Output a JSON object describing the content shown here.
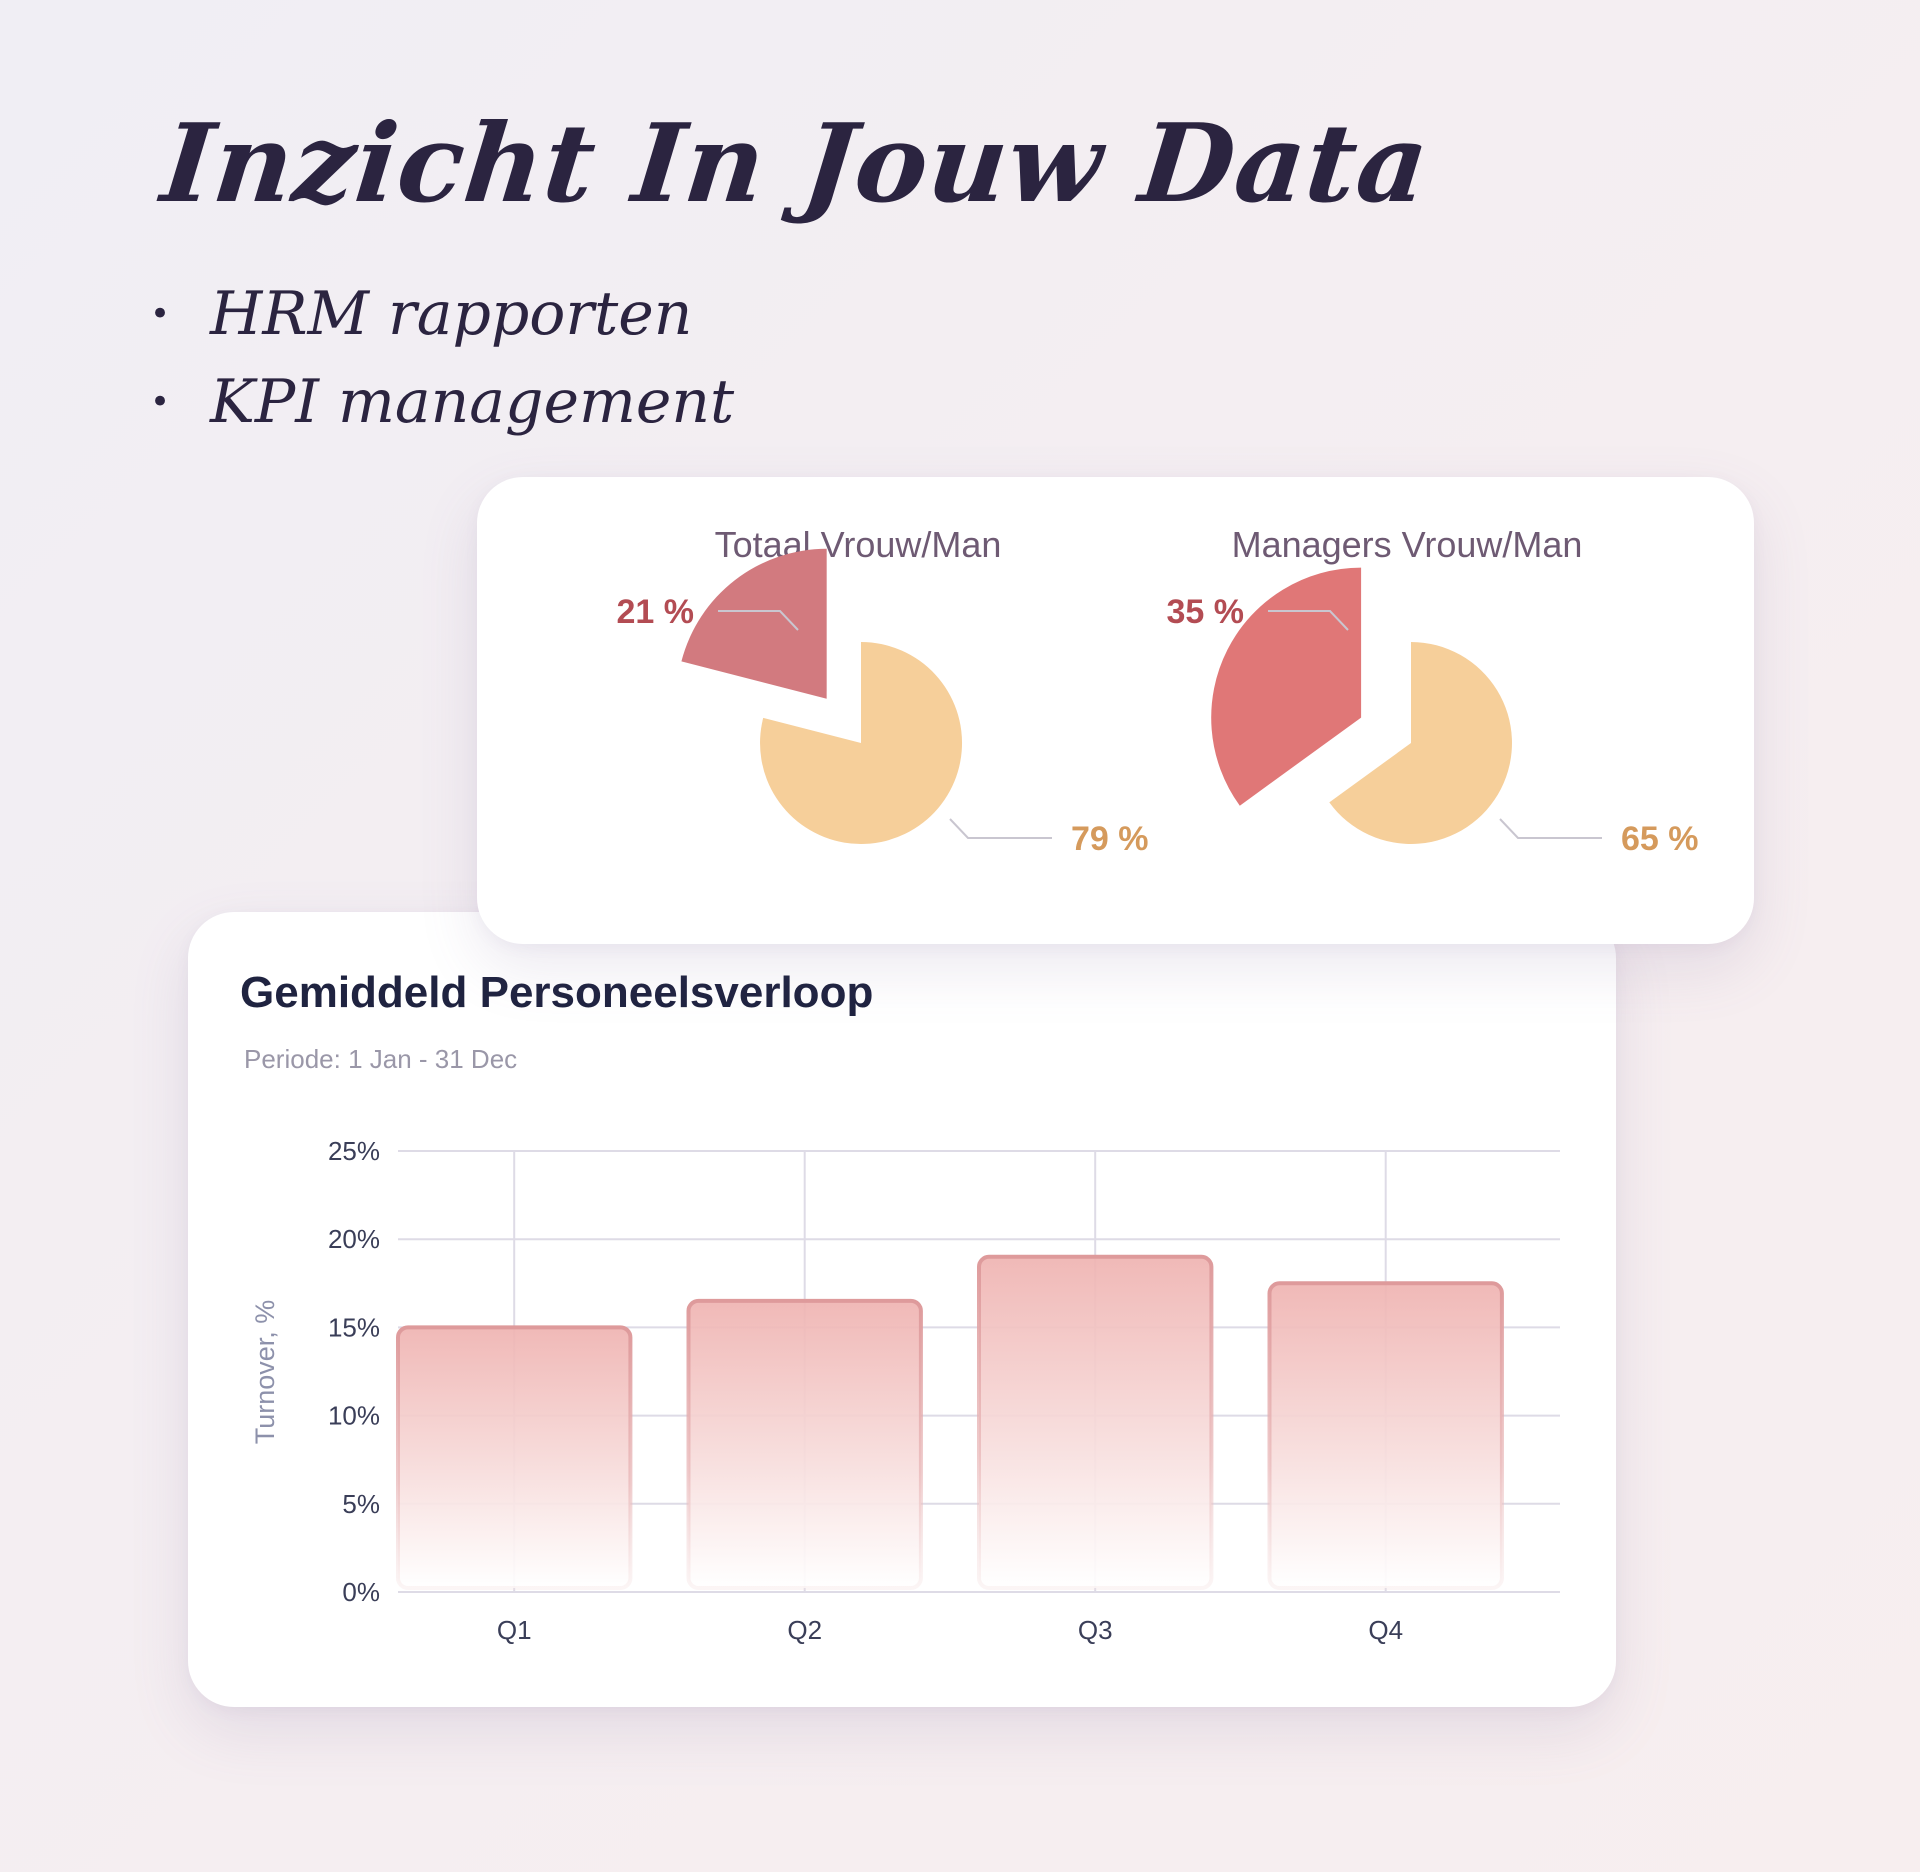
{
  "hero": {
    "title": "Inzicht In Jouw Data",
    "bullets": [
      "HRM rapporten",
      "KPI management"
    ]
  },
  "colors": {
    "female_total": "#d27a7f",
    "female_managers": "#e07777",
    "male": "#f6cf9a",
    "female_label": "#b34c53",
    "male_label": "#d59a5c",
    "bar_top": "#efb3b1",
    "bar_border": "#de9a9b",
    "grid": "#dedbe6"
  },
  "chart_data": [
    {
      "type": "pie",
      "title": "Totaal Vrouw/Man",
      "slices": [
        {
          "label": "21 %",
          "value": 21,
          "exploded": true
        },
        {
          "label": "79 %",
          "value": 79
        }
      ]
    },
    {
      "type": "pie",
      "title": "Managers Vrouw/Man",
      "slices": [
        {
          "label": "35 %",
          "value": 35,
          "exploded": true
        },
        {
          "label": "65 %",
          "value": 65
        }
      ]
    },
    {
      "type": "bar",
      "title": "Gemiddeld Personeelsverloop",
      "subtitle": "Periode: 1 Jan - 31 Dec",
      "categories": [
        "Q1",
        "Q2",
        "Q3",
        "Q4"
      ],
      "values": [
        15,
        16.5,
        19,
        17.5
      ],
      "ylabel": "Turnover, %",
      "ylim": [
        0,
        25
      ],
      "yticks": [
        "0%",
        "5%",
        "10%",
        "15%",
        "20%",
        "25%"
      ],
      "grid": true
    }
  ]
}
